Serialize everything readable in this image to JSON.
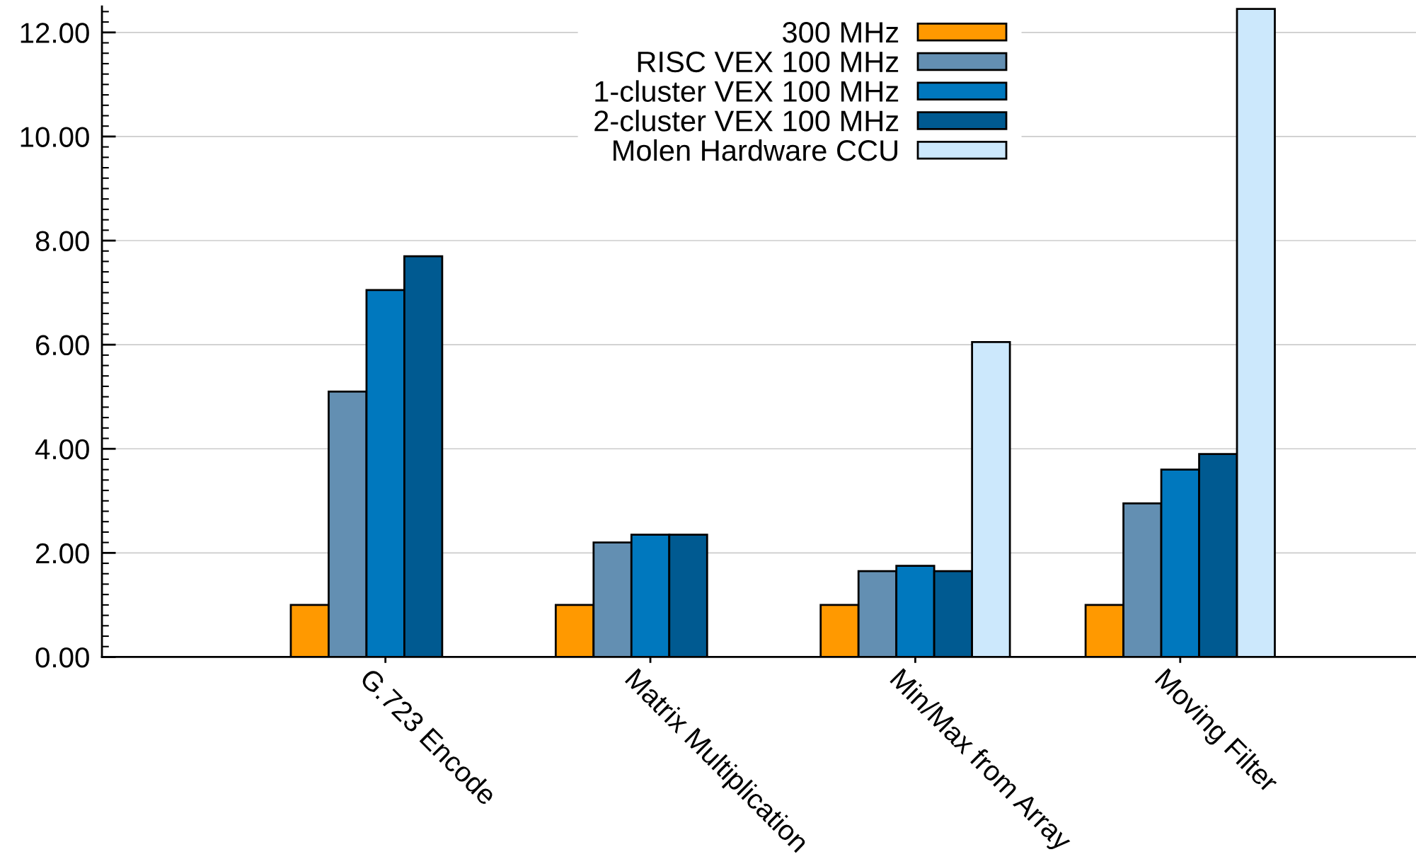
{
  "chart_data": {
    "type": "bar",
    "categories": [
      "G.723 Encode",
      "Matrix Multiplication",
      "Min/Max from Array",
      "Moving Filter"
    ],
    "series": [
      {
        "name": "300 MHz",
        "color": "#ff9900",
        "values": [
          1.0,
          1.0,
          1.0,
          1.0
        ]
      },
      {
        "name": "RISC VEX 100 MHz",
        "color": "#638fb2",
        "values": [
          5.1,
          2.2,
          1.65,
          2.95
        ]
      },
      {
        "name": "1-cluster VEX 100 MHz",
        "color": "#0078be",
        "values": [
          7.05,
          2.35,
          1.75,
          3.6
        ]
      },
      {
        "name": "2-cluster VEX 100 MHz",
        "color": "#005a91",
        "values": [
          7.7,
          2.35,
          1.65,
          3.9
        ]
      },
      {
        "name": "Molen Hardware CCU",
        "color": "#cce8fc",
        "values": [
          null,
          null,
          6.05,
          12.45
        ]
      }
    ],
    "ylim": [
      0,
      12.5
    ],
    "yticks": [
      {
        "value": 0,
        "label": "0.00"
      },
      {
        "value": 2,
        "label": "2.00"
      },
      {
        "value": 4,
        "label": "4.00"
      },
      {
        "value": 6,
        "label": "6.00"
      },
      {
        "value": 8,
        "label": "8.00"
      },
      {
        "value": 10,
        "label": "10.00"
      },
      {
        "value": 12,
        "label": "12.00"
      }
    ],
    "grid": "y",
    "legend": "top"
  }
}
